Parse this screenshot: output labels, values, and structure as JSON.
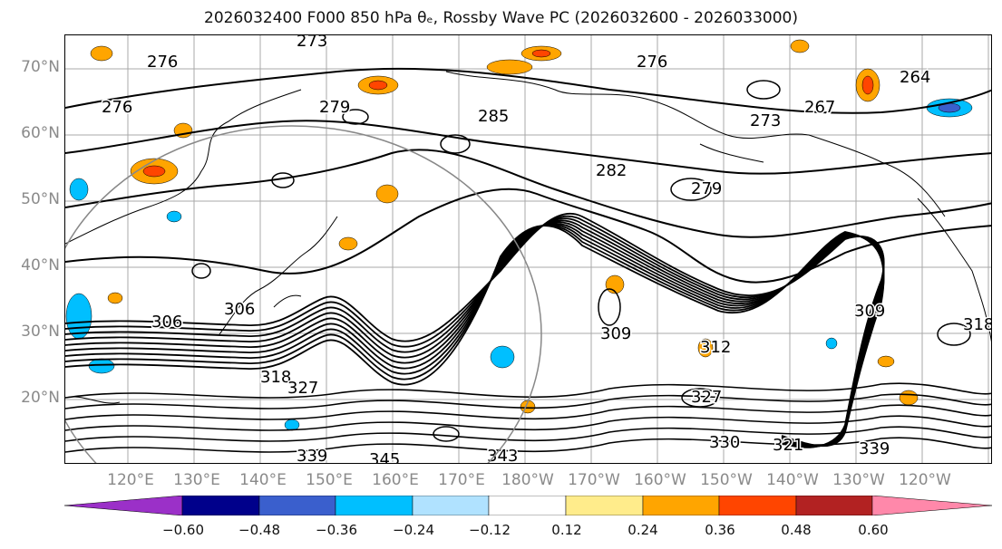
{
  "title": "2026032400 F000 850 hPa θₑ, Rossby Wave PC (2026032600 - 2026033000)",
  "map": {
    "lat_labels": [
      "70°N",
      "60°N",
      "50°N",
      "40°N",
      "30°N",
      "20°N"
    ],
    "lon_labels": [
      "120°E",
      "130°E",
      "140°E",
      "150°E",
      "160°E",
      "170°E",
      "180°W",
      "170°W",
      "160°W",
      "150°W",
      "140°W",
      "130°W",
      "120°W"
    ],
    "contour_labels": [
      "273",
      "276",
      "276",
      "279",
      "285",
      "282",
      "279",
      "276",
      "273",
      "267",
      "264",
      "306",
      "306",
      "309",
      "309",
      "312",
      "318",
      "318",
      "327",
      "327",
      "330",
      "339",
      "339",
      "345",
      "343",
      "321"
    ]
  },
  "colorbar": {
    "ticks": [
      "−0.60",
      "−0.48",
      "−0.36",
      "−0.24",
      "−0.12",
      "0.12",
      "0.24",
      "0.36",
      "0.48",
      "0.60"
    ],
    "colors": [
      "#9b30c8",
      "#00008b",
      "#3a5fcd",
      "#00bfff",
      "#b0e2ff",
      "#ffffff",
      "#ffec8b",
      "#ffa500",
      "#ff4500",
      "#b22222",
      "#ff88aa"
    ]
  }
}
